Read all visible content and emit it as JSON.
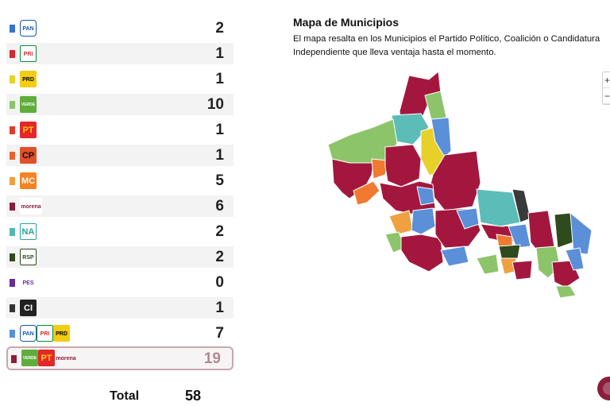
{
  "results": [
    {
      "parties": [
        {
          "text": "PAN",
          "bg": "#ffffff",
          "fg": "#1a56b0",
          "border": "#1a56b0",
          "w": 21
        }
      ],
      "bar": "#3b6fd0",
      "count": "2",
      "shade": false
    },
    {
      "parties": [
        {
          "text": "PRI",
          "bg": "#ffffff",
          "fg": "#d9262f",
          "border": "#0a8a3a",
          "w": 21
        }
      ],
      "bar": "#d9262f",
      "count": "1",
      "shade": true
    },
    {
      "parties": [
        {
          "text": "PRD",
          "bg": "#f1cd13",
          "fg": "#000000",
          "border": "#f1cd13",
          "w": 21
        }
      ],
      "bar": "#e8d02a",
      "count": "1",
      "shade": false
    },
    {
      "parties": [
        {
          "text": "VERDE",
          "bg": "#5fae3c",
          "fg": "#ffffff",
          "border": "#5fae3c",
          "w": 21
        }
      ],
      "bar": "#8cc46a",
      "count": "10",
      "shade": true
    },
    {
      "parties": [
        {
          "text": "PT",
          "bg": "#e5262b",
          "fg": "#ffd400",
          "border": "#e5262b",
          "w": 21
        }
      ],
      "bar": "#e03a2e",
      "count": "1",
      "shade": false
    },
    {
      "parties": [
        {
          "text": "CP",
          "bg": "#e0502a",
          "fg": "#111111",
          "border": "#e0502a",
          "w": 21
        }
      ],
      "bar": "#e8632c",
      "count": "1",
      "shade": true
    },
    {
      "parties": [
        {
          "text": "MC",
          "bg": "#f58220",
          "fg": "#ffffff",
          "border": "#f58220",
          "w": 21
        }
      ],
      "bar": "#f0a040",
      "count": "5",
      "shade": false
    },
    {
      "parties": [
        {
          "text": "morena",
          "bg": "#ffffff",
          "fg": "#8a1e3c",
          "border": "#ffffff",
          "w": 28
        }
      ],
      "bar": "#8a1e3c",
      "count": "6",
      "shade": true
    },
    {
      "parties": [
        {
          "text": "NA",
          "bg": "#ffffff",
          "fg": "#2aa39b",
          "border": "#2aa39b",
          "w": 21
        }
      ],
      "bar": "#4fb9b2",
      "count": "2",
      "shade": false
    },
    {
      "parties": [
        {
          "text": "RSP",
          "bg": "#ffffff",
          "fg": "#2f4a1c",
          "border": "#2f4a1c",
          "w": 21
        }
      ],
      "bar": "#2f4a1c",
      "count": "2",
      "shade": true
    },
    {
      "parties": [
        {
          "text": "PES",
          "bg": "#ffffff",
          "fg": "#6b2d8f",
          "border": "#ffffff",
          "w": 21
        }
      ],
      "bar": "#6b2d8f",
      "count": "0",
      "shade": false
    },
    {
      "parties": [
        {
          "text": "CI",
          "bg": "#222222",
          "fg": "#ffffff",
          "border": "#222222",
          "w": 21
        }
      ],
      "bar": "#333333",
      "count": "1",
      "shade": true
    },
    {
      "parties": [
        {
          "text": "PAN",
          "bg": "#ffffff",
          "fg": "#1a56b0",
          "border": "#1a56b0",
          "w": 21
        },
        {
          "text": "PRI",
          "bg": "#ffffff",
          "fg": "#d9262f",
          "border": "#0a8a3a",
          "w": 21
        },
        {
          "text": "PRD",
          "bg": "#f1cd13",
          "fg": "#000000",
          "border": "#f1cd13",
          "w": 21
        }
      ],
      "bar": "#5b8fd8",
      "count": "7",
      "shade": false
    },
    {
      "parties": [
        {
          "text": "VERDE",
          "bg": "#5fae3c",
          "fg": "#ffffff",
          "border": "#5fae3c",
          "w": 21
        },
        {
          "text": "PT",
          "bg": "#e5262b",
          "fg": "#ffd400",
          "border": "#e5262b",
          "w": 21
        },
        {
          "text": "morena",
          "bg": "#f6f4f4",
          "fg": "#8a1e3c",
          "border": "#f6f4f4",
          "w": 28
        }
      ],
      "bar": "#8a1e3c",
      "count": "19",
      "shade": false,
      "highlight": true
    }
  ],
  "total": {
    "label": "Total",
    "value": "58"
  },
  "map": {
    "title": "Mapa de Municipios",
    "description": "El mapa resalta en los Municipios el Partido Político, Coalición o Candidatura Independiente que lleva ventaja hasta el momento.",
    "zoom_in": "+",
    "zoom_out": "−",
    "colors": {
      "morena": "#a3173f",
      "verde": "#8cc46a",
      "azul": "#5b8fd8",
      "amarillo": "#e8d02a",
      "naranja": "#f07a30",
      "naranja_claro": "#f0a040",
      "turquesa": "#5cbcb8",
      "verde_oscuro": "#2f4a1c",
      "gris": "#3a3a3a"
    }
  }
}
